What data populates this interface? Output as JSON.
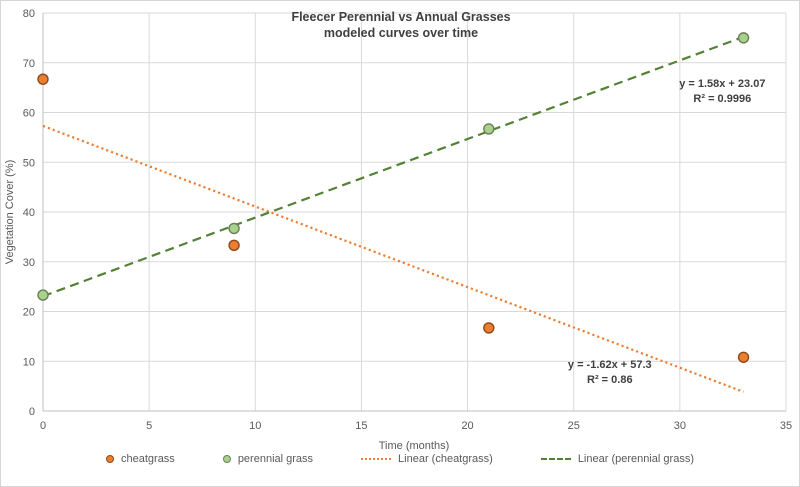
{
  "chart_data": {
    "type": "scatter",
    "title": "Fleecer Perennial vs Annual Grasses",
    "subtitle": "modeled curves over time",
    "xlabel": "Time (months)",
    "ylabel": "Vegetation Cover (%)",
    "xlim": [
      0,
      35
    ],
    "ylim": [
      0,
      80
    ],
    "xticks": [
      0,
      5,
      10,
      15,
      20,
      25,
      30,
      35
    ],
    "yticks": [
      0,
      10,
      20,
      30,
      40,
      50,
      60,
      70,
      80
    ],
    "grid": true,
    "legend_position": "bottom",
    "series": [
      {
        "name": "cheatgrass",
        "marker_fill": "#ED7D31",
        "marker_stroke": "#8C4A17",
        "points": [
          [
            0,
            66.7
          ],
          [
            9,
            33.3
          ],
          [
            21,
            16.7
          ],
          [
            33,
            10.8
          ]
        ]
      },
      {
        "name": "perennial grass",
        "marker_fill": "#A9D18E",
        "marker_stroke": "#6A7F55",
        "points": [
          [
            0,
            23.3
          ],
          [
            9,
            36.7
          ],
          [
            21,
            56.7
          ],
          [
            33,
            75.0
          ]
        ]
      }
    ],
    "trendlines": [
      {
        "name": "Linear (cheatgrass)",
        "color": "#ED7D31",
        "dash": "dotted",
        "slope": -1.62,
        "intercept": 57.3,
        "x_range": [
          0,
          33
        ],
        "equation": "y = -1.62x + 57.3",
        "r_squared": "R² = 0.86",
        "label_pos": [
          26.7,
          7.8
        ]
      },
      {
        "name": "Linear (perennial grass)",
        "color": "#548235",
        "dash": "dashed",
        "slope": 1.58,
        "intercept": 23.07,
        "x_range": [
          0,
          33.3
        ],
        "equation": "y = 1.58x + 23.07",
        "r_squared": "R² = 0.9996",
        "label_pos": [
          32.0,
          64.3
        ]
      }
    ],
    "legend": [
      {
        "label": "cheatgrass",
        "swatch": "circle",
        "color": "#ED7D31",
        "stroke": "#8C4A17"
      },
      {
        "label": "perennial grass",
        "swatch": "circle",
        "color": "#A9D18E",
        "stroke": "#6A7F55"
      },
      {
        "label": "Linear (cheatgrass)",
        "swatch": "dotted-line",
        "color": "#ED7D31",
        "stroke": "#ED7D31"
      },
      {
        "label": "Linear (perennial grass)",
        "swatch": "dashed-line",
        "color": "#548235",
        "stroke": "#548235"
      }
    ]
  }
}
